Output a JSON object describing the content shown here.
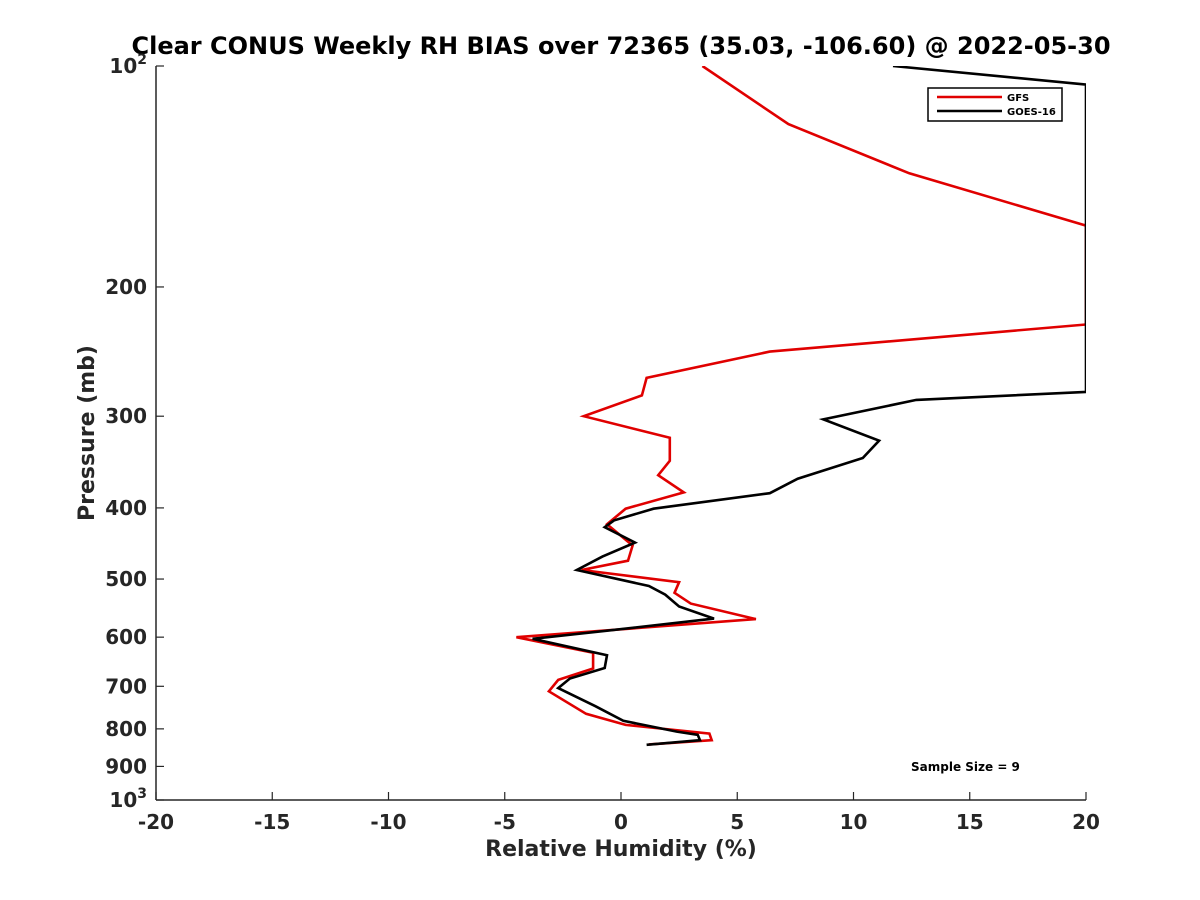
{
  "chart_data": {
    "type": "line",
    "title": "Clear CONUS Weekly RH BIAS over 72365 (35.03, -106.60) @ 2022-05-30",
    "xlabel": "Relative Humidity (%)",
    "ylabel": "Pressure (mb)",
    "xlim": [
      -20,
      20
    ],
    "ylim": [
      100,
      1000
    ],
    "y_scale": "log",
    "y_reversed": true,
    "grid": false,
    "legend_position": "top-right",
    "x_ticks": [
      -20,
      -15,
      -10,
      -5,
      0,
      5,
      10,
      15,
      20
    ],
    "x_tick_labels": [
      "-20",
      "-15",
      "-10",
      "-5",
      "0",
      "5",
      "10",
      "15",
      "20"
    ],
    "y_ticks": [
      100,
      200,
      300,
      400,
      500,
      600,
      700,
      800,
      900,
      1000
    ],
    "y_tick_labels": [
      {
        "base": "10",
        "exp": "2"
      },
      {
        "base": "200",
        "exp": ""
      },
      {
        "base": "300",
        "exp": ""
      },
      {
        "base": "400",
        "exp": ""
      },
      {
        "base": "500",
        "exp": ""
      },
      {
        "base": "600",
        "exp": ""
      },
      {
        "base": "700",
        "exp": ""
      },
      {
        "base": "800",
        "exp": ""
      },
      {
        "base": "900",
        "exp": ""
      },
      {
        "base": "10",
        "exp": "3"
      }
    ],
    "annotation": "Sample Size = 9",
    "series": [
      {
        "name": "GFS",
        "color": "#e00000",
        "points": [
          {
            "x": 3.5,
            "y": 100
          },
          {
            "x": 7.2,
            "y": 120
          },
          {
            "x": 12.4,
            "y": 140
          },
          {
            "x": 20,
            "y": 165
          },
          {
            "x": 20,
            "y": 225
          },
          {
            "x": 6.4,
            "y": 245
          },
          {
            "x": 1.1,
            "y": 266
          },
          {
            "x": 0.9,
            "y": 281
          },
          {
            "x": -1.6,
            "y": 300
          },
          {
            "x": 2.1,
            "y": 321
          },
          {
            "x": 2.1,
            "y": 345
          },
          {
            "x": 1.6,
            "y": 361
          },
          {
            "x": 2.7,
            "y": 381
          },
          {
            "x": 0.2,
            "y": 401
          },
          {
            "x": -0.6,
            "y": 421
          },
          {
            "x": 0.5,
            "y": 450
          },
          {
            "x": 0.3,
            "y": 472
          },
          {
            "x": -1.7,
            "y": 486
          },
          {
            "x": 2.5,
            "y": 505
          },
          {
            "x": 2.3,
            "y": 522
          },
          {
            "x": 3.0,
            "y": 540
          },
          {
            "x": 5.8,
            "y": 567
          },
          {
            "x": -4.5,
            "y": 600
          },
          {
            "x": -1.2,
            "y": 630
          },
          {
            "x": -1.2,
            "y": 662
          },
          {
            "x": -2.7,
            "y": 686
          },
          {
            "x": -3.1,
            "y": 711
          },
          {
            "x": -1.5,
            "y": 763
          },
          {
            "x": 0.2,
            "y": 790
          },
          {
            "x": 3.8,
            "y": 812
          },
          {
            "x": 3.9,
            "y": 829
          },
          {
            "x": 1.2,
            "y": 840
          }
        ]
      },
      {
        "name": "GOES-16",
        "color": "#000000",
        "points": [
          {
            "x": 11.7,
            "y": 100
          },
          {
            "x": 20,
            "y": 106
          },
          {
            "x": 20,
            "y": 278
          },
          {
            "x": 12.7,
            "y": 285
          },
          {
            "x": 8.7,
            "y": 303
          },
          {
            "x": 11.1,
            "y": 324
          },
          {
            "x": 10.4,
            "y": 342
          },
          {
            "x": 7.6,
            "y": 365
          },
          {
            "x": 6.4,
            "y": 382
          },
          {
            "x": 1.4,
            "y": 401
          },
          {
            "x": -0.3,
            "y": 416
          },
          {
            "x": -0.7,
            "y": 425
          },
          {
            "x": 0.6,
            "y": 446
          },
          {
            "x": -0.8,
            "y": 466
          },
          {
            "x": -1.9,
            "y": 486
          },
          {
            "x": 1.2,
            "y": 511
          },
          {
            "x": 1.9,
            "y": 525
          },
          {
            "x": 2.5,
            "y": 545
          },
          {
            "x": 4.0,
            "y": 566
          },
          {
            "x": -0.6,
            "y": 588
          },
          {
            "x": -3.8,
            "y": 603
          },
          {
            "x": -0.6,
            "y": 635
          },
          {
            "x": -0.7,
            "y": 661
          },
          {
            "x": -2.2,
            "y": 683
          },
          {
            "x": -2.7,
            "y": 704
          },
          {
            "x": -1.1,
            "y": 745
          },
          {
            "x": 0.1,
            "y": 780
          },
          {
            "x": 2.4,
            "y": 807
          },
          {
            "x": 3.3,
            "y": 815
          },
          {
            "x": 3.4,
            "y": 829
          },
          {
            "x": 1.1,
            "y": 841
          }
        ]
      }
    ]
  }
}
